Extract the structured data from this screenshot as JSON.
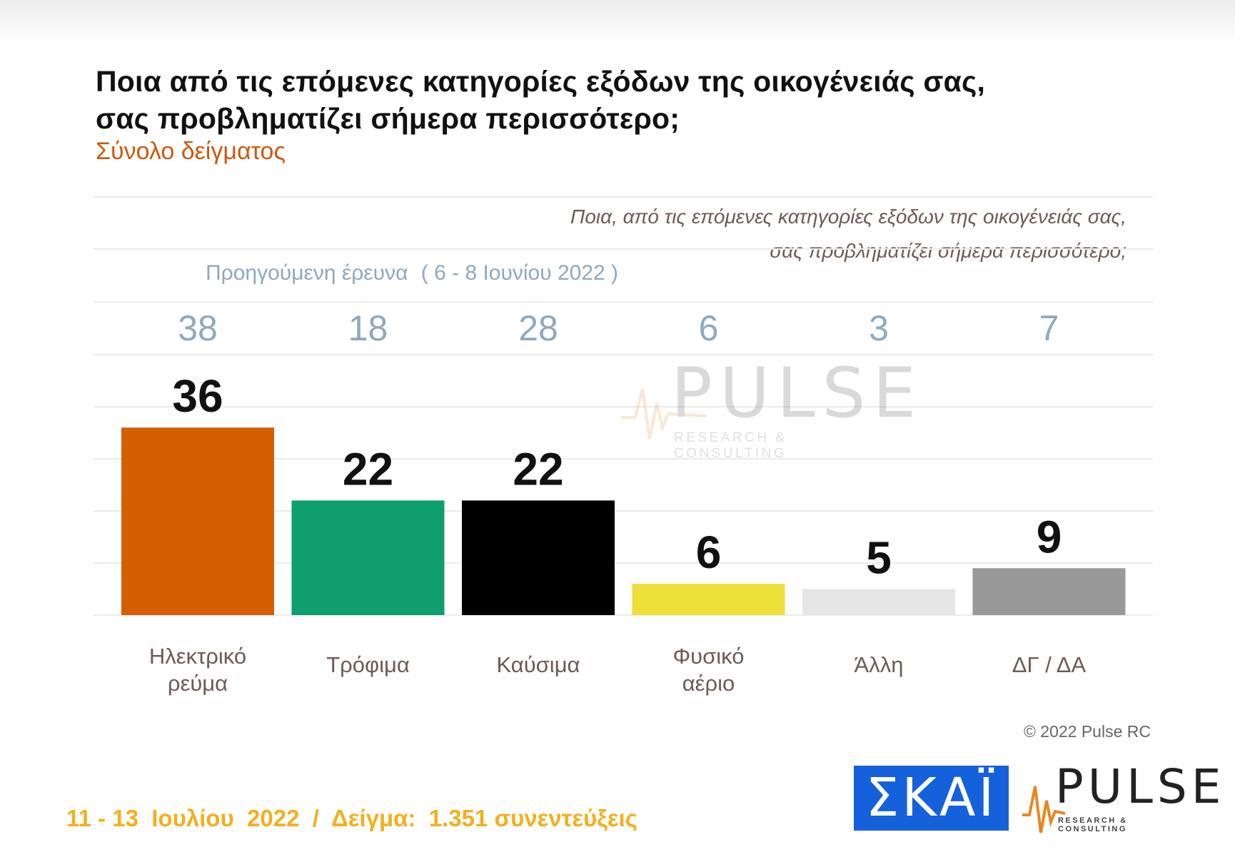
{
  "title_line1": "Ποια από τις επόμενες κατηγορίες εξόδων της οικογένειάς σας,",
  "title_line2": "σας προβληματίζει σήμερα περισσότερο;",
  "subtitle": "Σύνολο δείγματος",
  "question_italic_line1": "Ποια, από τις επόμενες κατηγορίες εξόδων της οικογένειάς σας,",
  "question_italic_line2": "σας προβληματίζει σήμερα περισσότερο;",
  "previous_survey_label": "Προηγούμενη έρευνα",
  "previous_survey_dates": "( 6 - 8 Ιουνίου  2022 )",
  "watermark": {
    "word": "PULSE",
    "sub": "RESEARCH & CONSULTING"
  },
  "copyright": "© 2022 Pulse RC",
  "footer": "11 - 13  Ιουλίου  2022  /  Δείγμα:  1.351 συνεντεύξεις",
  "logos": {
    "skai": "ΣΚΑΪ",
    "pulse": "PULSE",
    "pulse_sub": "RESEARCH & CONSULTING"
  },
  "colors": {
    "subtitle": "#cc5a0e",
    "previous_values": "#8fa9bd",
    "footer": "#f2b01e",
    "skai_blue": "#1560db"
  },
  "chart_data": {
    "type": "bar",
    "categories": [
      [
        "Ηλεκτρικό",
        "ρεύμα"
      ],
      [
        "Τρόφιμα"
      ],
      [
        "Καύσιμα"
      ],
      [
        "Φυσικό",
        "αέριο"
      ],
      [
        "Άλλη"
      ],
      [
        "ΔΓ / ΔΑ"
      ]
    ],
    "values": [
      36,
      22,
      22,
      6,
      5,
      9
    ],
    "previous_values": [
      38,
      18,
      28,
      6,
      3,
      7
    ],
    "bar_colors": [
      "#d35f00",
      "#0f9e6e",
      "#000000",
      "#eee03a",
      "#e6e6e6",
      "#999999"
    ],
    "ylim": [
      0,
      42
    ],
    "grid": true,
    "legend": "none"
  }
}
